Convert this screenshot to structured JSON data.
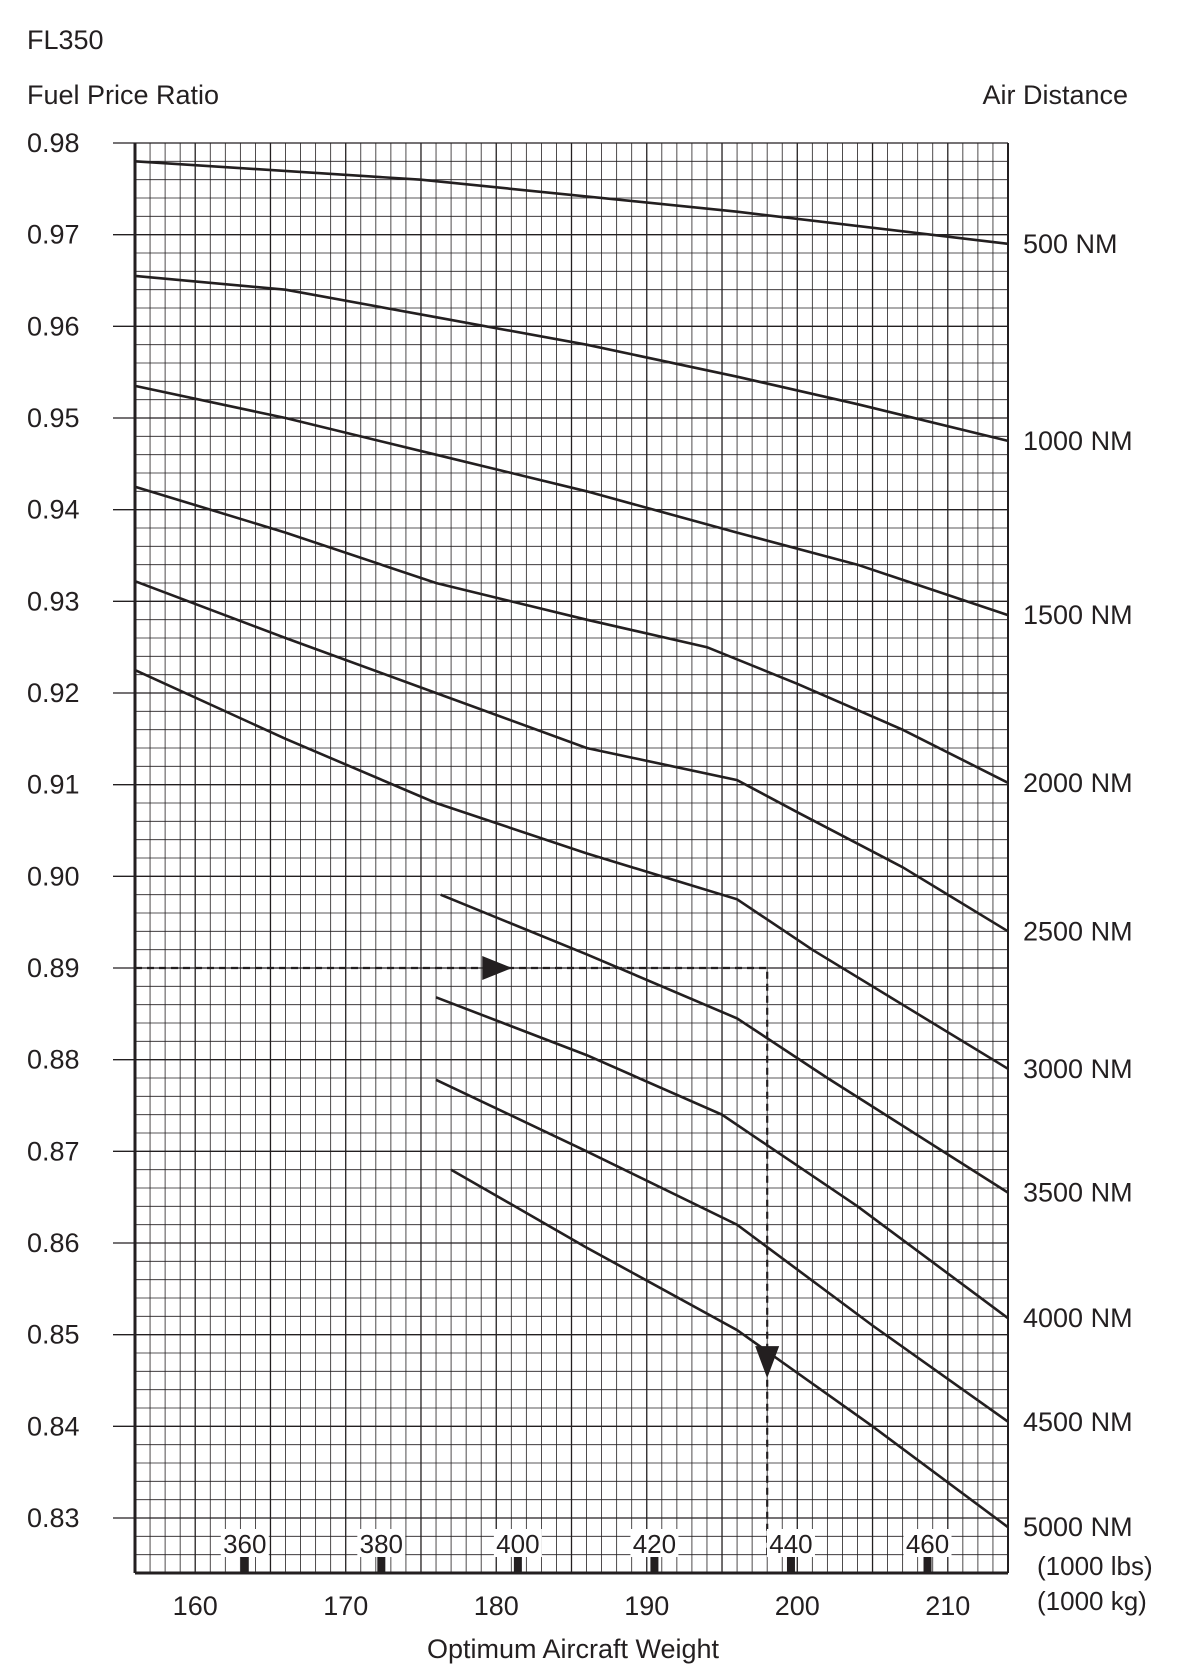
{
  "chart_data": {
    "type": "line",
    "flight_level": "FL350",
    "ylabel": "Fuel Price Ratio",
    "right_label": "Air Distance",
    "xlabel": "Optimum Aircraft Weight",
    "x_unit_kg": "(1000 kg)",
    "x_unit_lbs": "(1000 lbs)",
    "xlim": [
      156,
      214
    ],
    "ylim": [
      0.824,
      0.98
    ],
    "y_ticks": [
      {
        "v": 0.98,
        "t": "0.98"
      },
      {
        "v": 0.97,
        "t": "0.97"
      },
      {
        "v": 0.96,
        "t": "0.96"
      },
      {
        "v": 0.95,
        "t": "0.95"
      },
      {
        "v": 0.94,
        "t": "0.94"
      },
      {
        "v": 0.93,
        "t": "0.93"
      },
      {
        "v": 0.92,
        "t": "0.92"
      },
      {
        "v": 0.91,
        "t": "0.91"
      },
      {
        "v": 0.9,
        "t": "0.90"
      },
      {
        "v": 0.89,
        "t": "0.89"
      },
      {
        "v": 0.88,
        "t": "0.88"
      },
      {
        "v": 0.87,
        "t": "0.87"
      },
      {
        "v": 0.86,
        "t": "0.86"
      },
      {
        "v": 0.85,
        "t": "0.85"
      },
      {
        "v": 0.84,
        "t": "0.84"
      },
      {
        "v": 0.83,
        "t": "0.83"
      }
    ],
    "x_ticks_kg": [
      {
        "v": 160,
        "t": "160"
      },
      {
        "v": 170,
        "t": "170"
      },
      {
        "v": 180,
        "t": "180"
      },
      {
        "v": 190,
        "t": "190"
      },
      {
        "v": 200,
        "t": "200"
      },
      {
        "v": 210,
        "t": "210"
      }
    ],
    "x_ticks_lbs": [
      {
        "v": 360,
        "t": "360"
      },
      {
        "v": 380,
        "t": "380"
      },
      {
        "v": 400,
        "t": "400"
      },
      {
        "v": 420,
        "t": "420"
      },
      {
        "v": 440,
        "t": "440"
      },
      {
        "v": 460,
        "t": "460"
      }
    ],
    "grid": true,
    "series": [
      {
        "name": "500 NM",
        "label_y": 0.969,
        "points": [
          [
            156,
            0.978
          ],
          [
            175,
            0.976
          ],
          [
            196,
            0.9725
          ],
          [
            214,
            0.969
          ]
        ]
      },
      {
        "name": "1000 NM",
        "label_y": 0.9475,
        "points": [
          [
            156,
            0.9655
          ],
          [
            166,
            0.964
          ],
          [
            176,
            0.961
          ],
          [
            186,
            0.958
          ],
          [
            196,
            0.9545
          ],
          [
            204,
            0.9515
          ],
          [
            214,
            0.9475
          ]
        ]
      },
      {
        "name": "1500 NM",
        "label_y": 0.9285,
        "points": [
          [
            156,
            0.9535
          ],
          [
            166,
            0.95
          ],
          [
            176,
            0.946
          ],
          [
            186,
            0.942
          ],
          [
            196,
            0.9375
          ],
          [
            204,
            0.934
          ],
          [
            214,
            0.9285
          ]
        ]
      },
      {
        "name": "2000 NM",
        "label_y": 0.9102,
        "points": [
          [
            156,
            0.9425
          ],
          [
            166,
            0.9375
          ],
          [
            176,
            0.932
          ],
          [
            186,
            0.928
          ],
          [
            194,
            0.925
          ],
          [
            200,
            0.921
          ],
          [
            207,
            0.916
          ],
          [
            214,
            0.9102
          ]
        ]
      },
      {
        "name": "2500 NM",
        "label_y": 0.894,
        "points": [
          [
            156,
            0.9322
          ],
          [
            166,
            0.926
          ],
          [
            176,
            0.92
          ],
          [
            186,
            0.914
          ],
          [
            196,
            0.9105
          ],
          [
            200,
            0.907
          ],
          [
            207,
            0.901
          ],
          [
            214,
            0.894
          ]
        ]
      },
      {
        "name": "3000 NM",
        "label_y": 0.879,
        "points": [
          [
            156,
            0.9225
          ],
          [
            166,
            0.915
          ],
          [
            176,
            0.908
          ],
          [
            186,
            0.9025
          ],
          [
            196,
            0.8975
          ],
          [
            201,
            0.892
          ],
          [
            207,
            0.886
          ],
          [
            214,
            0.879
          ]
        ]
      },
      {
        "name": "3500 NM",
        "label_y": 0.8655,
        "points": [
          [
            176.3,
            0.898
          ],
          [
            186,
            0.8915
          ],
          [
            196,
            0.8845
          ],
          [
            202,
            0.878
          ],
          [
            214,
            0.8655
          ]
        ]
      },
      {
        "name": "4000 NM",
        "label_y": 0.8518,
        "points": [
          [
            176,
            0.8868
          ],
          [
            186,
            0.8805
          ],
          [
            195,
            0.874
          ],
          [
            204,
            0.864
          ],
          [
            214,
            0.8518
          ]
        ]
      },
      {
        "name": "4500 NM",
        "label_y": 0.8405,
        "points": [
          [
            176,
            0.8778
          ],
          [
            186,
            0.87
          ],
          [
            196,
            0.862
          ],
          [
            205,
            0.851
          ],
          [
            214,
            0.8405
          ]
        ]
      },
      {
        "name": "5000 NM",
        "label_y": 0.829,
        "points": [
          [
            177,
            0.868
          ],
          [
            186,
            0.8595
          ],
          [
            196,
            0.8505
          ],
          [
            205,
            0.84
          ],
          [
            214,
            0.829
          ]
        ]
      }
    ],
    "example_path": [
      [
        156,
        0.89
      ],
      [
        198,
        0.89
      ],
      [
        198,
        0.826
      ]
    ],
    "example_arrows": [
      [
        180,
        0.89,
        "right"
      ],
      [
        198,
        0.847,
        "down"
      ]
    ]
  }
}
